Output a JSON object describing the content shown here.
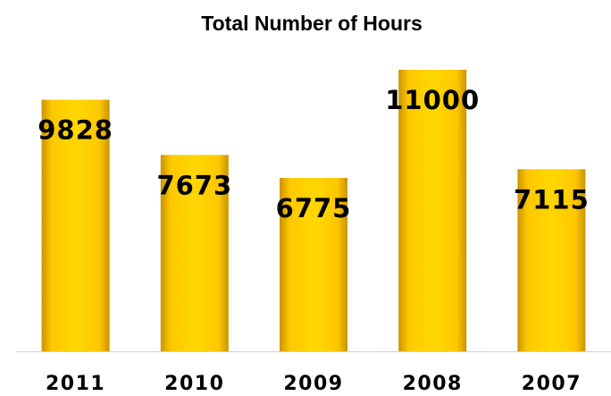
{
  "chart_data": {
    "type": "bar",
    "title": "Total Number of Hours",
    "categories": [
      "2011",
      "2010",
      "2009",
      "2008",
      "2007"
    ],
    "values": [
      9828,
      7673,
      6775,
      11000,
      7115
    ],
    "color": "#ffcc00",
    "ylim": [
      0,
      12000
    ]
  }
}
